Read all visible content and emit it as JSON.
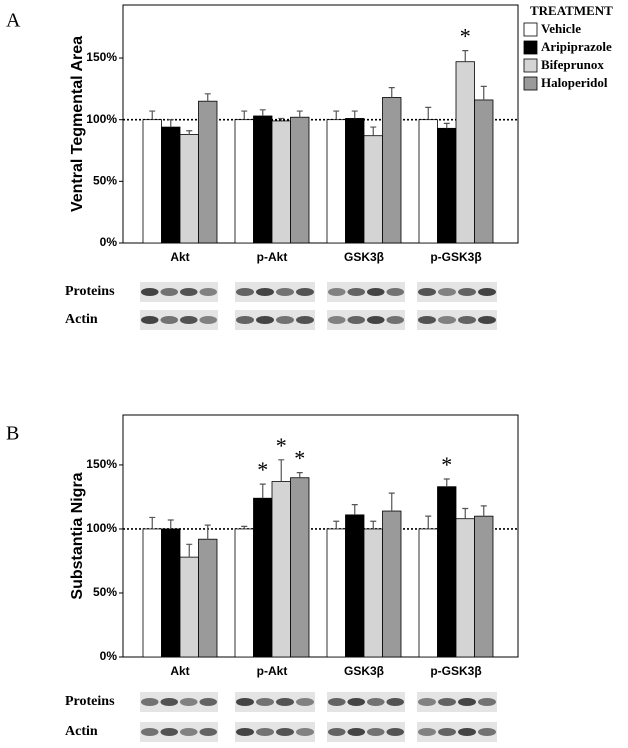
{
  "chart_data": [
    {
      "type": "bar",
      "panel": "A",
      "ylabel": "Ventral Tegmental Area",
      "categories": [
        "Akt",
        "p-Akt",
        "GSK3β",
        "p-GSK3β"
      ],
      "ylim": [
        0,
        193
      ],
      "yticks": [
        {
          "value": 0,
          "label": "0%"
        },
        {
          "value": 50,
          "label": "50%"
        },
        {
          "value": 100,
          "label": "100%"
        },
        {
          "value": 150,
          "label": "150%"
        }
      ],
      "hline": 100,
      "legend_title": "TREATMENT",
      "legend": "outside-right",
      "series": [
        {
          "name": "Vehicle",
          "color": "#ffffff",
          "values": [
            100,
            100,
            100,
            100
          ],
          "errors": [
            7,
            7,
            7,
            10
          ],
          "labels": [
            null,
            null,
            null,
            null
          ]
        },
        {
          "name": "Aripiprazole",
          "color": "#000000",
          "values": [
            94,
            103,
            101,
            93
          ],
          "errors": [
            6,
            5,
            6,
            4
          ],
          "labels": [
            null,
            null,
            null,
            null
          ]
        },
        {
          "name": "Bifeprunox",
          "color": "#d4d4d4",
          "values": [
            88,
            99,
            87,
            147
          ],
          "errors": [
            3,
            2,
            7,
            9
          ],
          "labels": [
            null,
            null,
            null,
            "*"
          ]
        },
        {
          "name": "Haloperidol",
          "color": "#9a9a9a",
          "values": [
            115,
            102,
            118,
            116
          ],
          "errors": [
            6,
            5,
            8,
            11
          ],
          "labels": [
            null,
            null,
            null,
            null
          ]
        }
      ],
      "blot_labels": [
        "Proteins",
        "Actin"
      ]
    },
    {
      "type": "bar",
      "panel": "B",
      "ylabel": "Substantia Nigra",
      "categories": [
        "Akt",
        "p-Akt",
        "GSK3β",
        "p-GSK3β"
      ],
      "ylim": [
        0,
        189
      ],
      "yticks": [
        {
          "value": 0,
          "label": "0%"
        },
        {
          "value": 50,
          "label": "50%"
        },
        {
          "value": 100,
          "label": "100%"
        },
        {
          "value": 150,
          "label": "150%"
        }
      ],
      "hline": 100,
      "series": [
        {
          "color": "#ffffff",
          "values": [
            100,
            100,
            100,
            100
          ],
          "errors": [
            9,
            2,
            6,
            10
          ],
          "labels": [
            null,
            null,
            null,
            null
          ]
        },
        {
          "color": "#000000",
          "values": [
            100,
            124,
            111,
            133
          ],
          "errors": [
            7,
            11,
            8,
            6
          ],
          "labels": [
            null,
            "*",
            null,
            "*"
          ]
        },
        {
          "color": "#d4d4d4",
          "values": [
            78,
            137,
            100,
            108
          ],
          "errors": [
            10,
            17,
            6,
            8
          ],
          "labels": [
            null,
            "*",
            null,
            null
          ]
        },
        {
          "color": "#9a9a9a",
          "values": [
            92,
            140,
            114,
            110
          ],
          "errors": [
            11,
            4,
            14,
            8
          ],
          "labels": [
            null,
            "*",
            null,
            null
          ]
        }
      ],
      "blot_labels": [
        "Proteins",
        "Actin"
      ]
    }
  ]
}
